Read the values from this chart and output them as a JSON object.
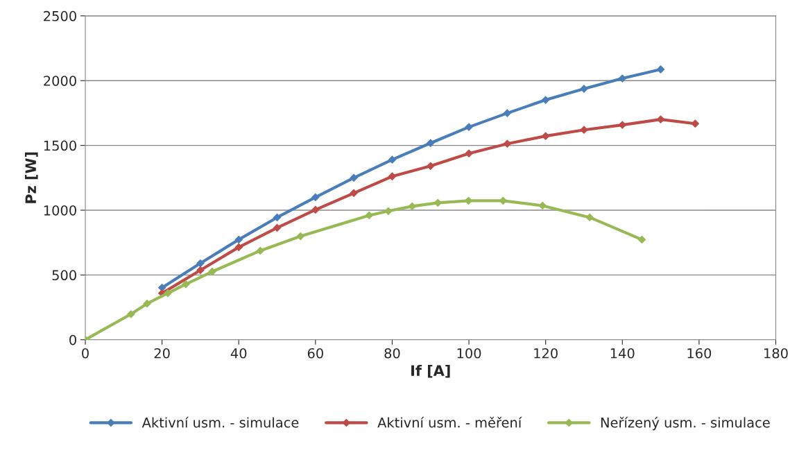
{
  "chart_data": {
    "type": "line",
    "xlabel": "If [A]",
    "ylabel": "Pz [W]",
    "xlim": [
      0,
      180
    ],
    "xticks": [
      0,
      20,
      40,
      60,
      80,
      100,
      120,
      140,
      160,
      180
    ],
    "ylim": [
      0,
      2500
    ],
    "yticks": [
      0,
      500,
      1000,
      1500,
      2000,
      2500
    ],
    "grid": "y",
    "legend": "bottom",
    "marker": "diamond",
    "line_style": "solid",
    "series": [
      {
        "name": "Aktivní usm. - simulace",
        "color": "#4a7ebb",
        "x": [
          20,
          30,
          40,
          50,
          60,
          70,
          80,
          90,
          100,
          110,
          120,
          130,
          140,
          150
        ],
        "values": [
          402,
          590,
          773,
          944,
          1100,
          1250,
          1390,
          1518,
          1642,
          1749,
          1851,
          1937,
          2017,
          2087
        ]
      },
      {
        "name": "Aktivní usm. - měření",
        "color": "#be4b48",
        "x": [
          20,
          30,
          40,
          50,
          60,
          70,
          80,
          90,
          100,
          110,
          120,
          130,
          140,
          150,
          159
        ],
        "values": [
          359,
          537,
          714,
          864,
          1003,
          1132,
          1261,
          1341,
          1438,
          1513,
          1572,
          1620,
          1658,
          1701,
          1668
        ]
      },
      {
        "name": "Neřízený usm. - simulace",
        "color": "#98b954",
        "x": [
          0,
          11.9,
          16.1,
          21.5,
          26.2,
          33.1,
          45.6,
          56.1,
          74,
          79,
          85.2,
          91.9,
          99.9,
          108.9,
          119.2,
          131.5,
          145.1
        ],
        "values": [
          0,
          198,
          279,
          359,
          429,
          526,
          687,
          799,
          960,
          993,
          1030,
          1057,
          1073,
          1073,
          1035,
          944,
          773
        ]
      }
    ]
  }
}
